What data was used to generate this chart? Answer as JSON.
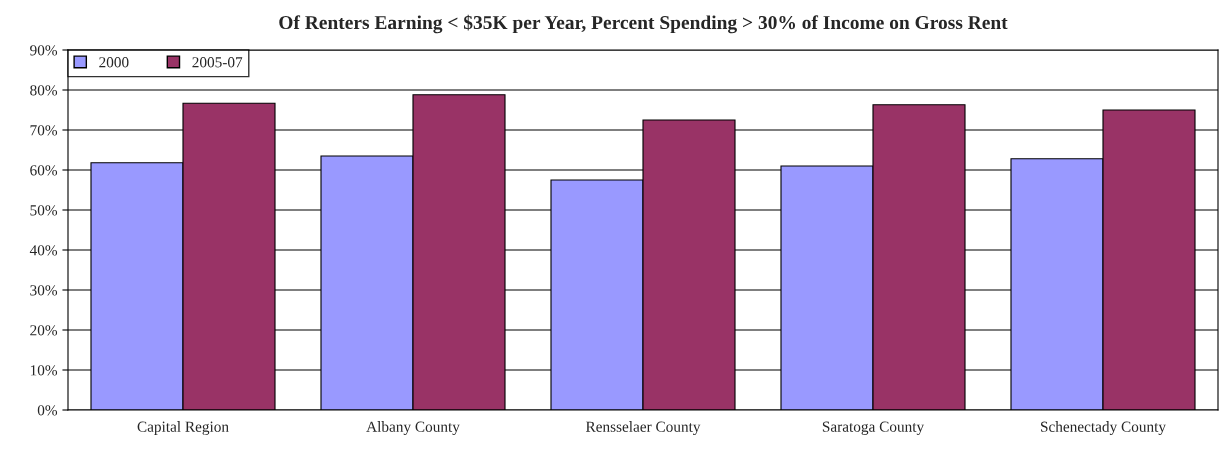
{
  "chart_data": {
    "type": "bar",
    "title": "Of Renters Earning < $35K per Year, Percent Spending > 30% of Income on Gross Rent",
    "categories": [
      "Capital Region",
      "Albany County",
      "Rensselaer County",
      "Saratoga County",
      "Schenectady County"
    ],
    "series": [
      {
        "name": "2000",
        "color": "#9999ff",
        "values": [
          61.8,
          63.5,
          57.5,
          61.0,
          62.8
        ]
      },
      {
        "name": "2005-07",
        "color": "#993366",
        "values": [
          76.7,
          78.8,
          72.5,
          76.3,
          75.0
        ]
      }
    ],
    "ylim": [
      0,
      90
    ],
    "yticks": [
      {
        "value": 0,
        "label": "0%"
      },
      {
        "value": 10,
        "label": "10%"
      },
      {
        "value": 20,
        "label": "20%"
      },
      {
        "value": 30,
        "label": "30%"
      },
      {
        "value": 40,
        "label": "40%"
      },
      {
        "value": 50,
        "label": "50%"
      },
      {
        "value": 60,
        "label": "60%"
      },
      {
        "value": 70,
        "label": "70%"
      },
      {
        "value": 80,
        "label": "80%"
      },
      {
        "value": 90,
        "label": "90%"
      }
    ],
    "grid": "y",
    "legend": "top left"
  }
}
